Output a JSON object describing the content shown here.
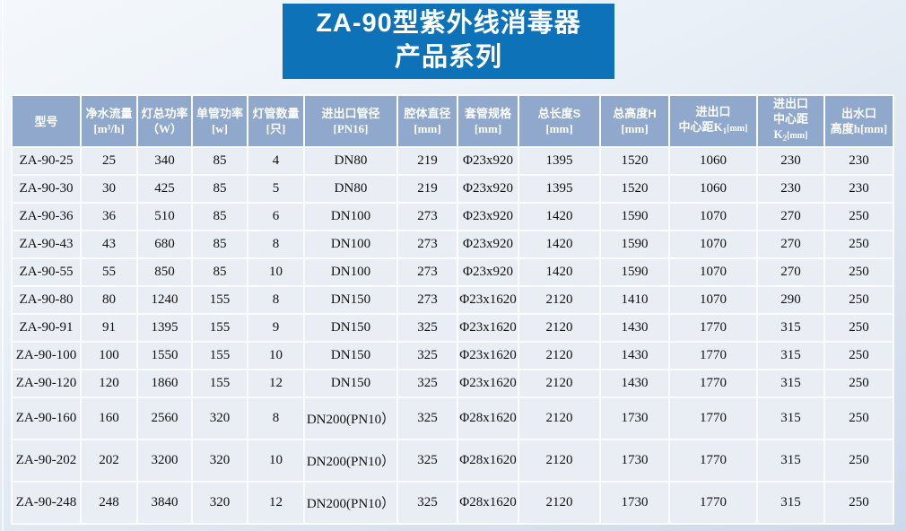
{
  "title": {
    "line1": "ZA-90型紫外线消毒器",
    "line2": "产品系列"
  },
  "colors": {
    "banner_blue": "#0e72b8",
    "header_blue": "#8fa8cb",
    "cell_bg": "#e9edf4",
    "grid_white": "#fbfcfe"
  },
  "table": {
    "headers": [
      {
        "line1": "型号",
        "line2": ""
      },
      {
        "line1": "净水流量",
        "line2": "[m³/h]"
      },
      {
        "line1": "灯总功率",
        "line2": "（W）"
      },
      {
        "line1": "单管功率",
        "line2": "[w]"
      },
      {
        "line1": "灯管数量",
        "line2": "[只]"
      },
      {
        "line1": "进出口管径",
        "line2": "[PN16]"
      },
      {
        "line1": "腔体直径",
        "line2": "[mm]"
      },
      {
        "line1": "套管规格",
        "line2": "[mm]"
      },
      {
        "line1": "总长度S",
        "line2": "[mm]"
      },
      {
        "line1": "总高度H",
        "line2": "[mm]"
      },
      {
        "line1": "进出口",
        "line2": "中心距K",
        "sub": "1",
        "unit": "[mm]"
      },
      {
        "line1": "进出口",
        "line2": "中心距K",
        "sub": "2",
        "unit": "[mm]"
      },
      {
        "line1": "出水口",
        "line2": "高度h[mm]"
      }
    ],
    "rows": [
      [
        "ZA-90-25",
        "25",
        "340",
        "85",
        "4",
        "DN80",
        "219",
        "Φ23x920",
        "1395",
        "1520",
        "1060",
        "230",
        "230"
      ],
      [
        "ZA-90-30",
        "30",
        "425",
        "85",
        "5",
        "DN80",
        "219",
        "Φ23x920",
        "1395",
        "1520",
        "1060",
        "230",
        "230"
      ],
      [
        "ZA-90-36",
        "36",
        "510",
        "85",
        "6",
        "DN100",
        "273",
        "Φ23x920",
        "1420",
        "1590",
        "1070",
        "270",
        "250"
      ],
      [
        "ZA-90-43",
        "43",
        "680",
        "85",
        "8",
        "DN100",
        "273",
        "Φ23x920",
        "1420",
        "1590",
        "1070",
        "270",
        "250"
      ],
      [
        "ZA-90-55",
        "55",
        "850",
        "85",
        "10",
        "DN100",
        "273",
        "Φ23x920",
        "1420",
        "1590",
        "1070",
        "270",
        "250"
      ],
      [
        "ZA-90-80",
        "80",
        "1240",
        "155",
        "8",
        "DN150",
        "273",
        "Φ23x1620",
        "2120",
        "1410",
        "1070",
        "290",
        "250"
      ],
      [
        "ZA-90-91",
        "91",
        "1395",
        "155",
        "9",
        "DN150",
        "325",
        "Φ23x1620",
        "2120",
        "1430",
        "1770",
        "315",
        "250"
      ],
      [
        "ZA-90-100",
        "100",
        "1550",
        "155",
        "10",
        "DN150",
        "325",
        "Φ23x1620",
        "2120",
        "1430",
        "1770",
        "315",
        "250"
      ],
      [
        "ZA-90-120",
        "120",
        "1860",
        "155",
        "12",
        "DN150",
        "325",
        "Φ23x1620",
        "2120",
        "1430",
        "1770",
        "315",
        "250"
      ],
      [
        "ZA-90-160",
        "160",
        "2560",
        "320",
        "8",
        "DN200(PN10）",
        "325",
        "Φ28x1620",
        "2120",
        "1730",
        "1770",
        "315",
        "250"
      ],
      [
        "ZA-90-202",
        "202",
        "3200",
        "320",
        "10",
        "DN200(PN10）",
        "325",
        "Φ28x1620",
        "2120",
        "1730",
        "1770",
        "315",
        "250"
      ],
      [
        "ZA-90-248",
        "248",
        "3840",
        "320",
        "12",
        "DN200(PN10）",
        "325",
        "Φ28x1620",
        "2120",
        "1730",
        "1770",
        "315",
        "250"
      ]
    ]
  }
}
